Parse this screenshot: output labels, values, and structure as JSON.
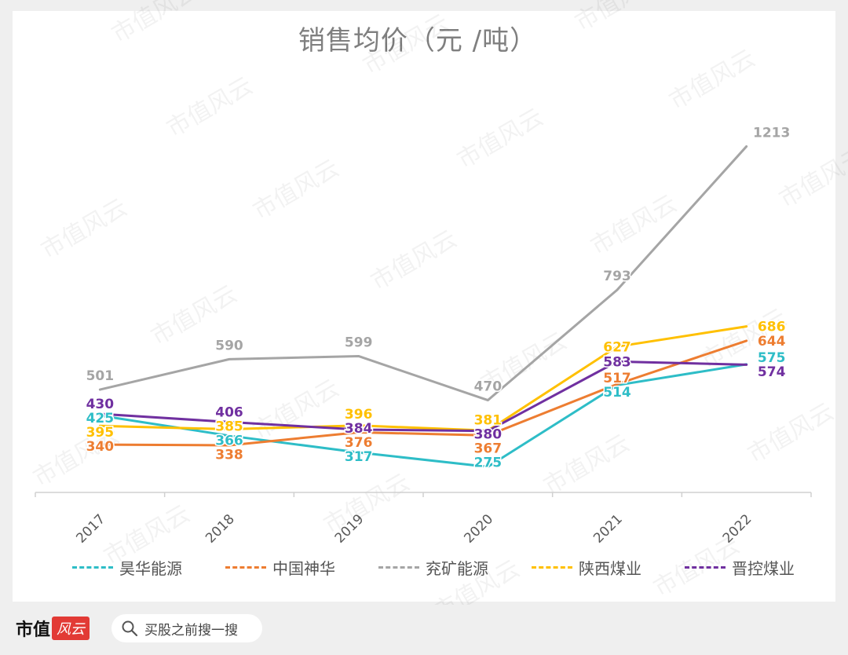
{
  "title": "销售均价（元 /吨）",
  "footer": {
    "brand_text": "市值",
    "brand_badge": "风云",
    "search_text": "买股之前搜一搜",
    "search_icon": "search-icon"
  },
  "watermark": "市值风云",
  "chart_data": {
    "type": "line",
    "title": "销售均价（元 /吨）",
    "xlabel": "",
    "ylabel": "",
    "categories": [
      "2017",
      "2018",
      "2019",
      "2020",
      "2021",
      "2022"
    ],
    "ylim": [
      200,
      1260
    ],
    "grid": false,
    "legend_position": "bottom",
    "series": [
      {
        "name": "昊华能源",
        "color": "#2ebdc7",
        "values": [
          425,
          366,
          317,
          275,
          514,
          575
        ]
      },
      {
        "name": "中国神华",
        "color": "#ed7d31",
        "values": [
          340,
          338,
          376,
          367,
          517,
          644
        ]
      },
      {
        "name": "兖矿能源",
        "color": "#a5a5a5",
        "values": [
          501,
          590,
          599,
          470,
          793,
          1213
        ]
      },
      {
        "name": "陕西煤业",
        "color": "#ffc000",
        "values": [
          395,
          385,
          396,
          381,
          627,
          686
        ]
      },
      {
        "name": "晋控煤业",
        "color": "#7030a0",
        "values": [
          430,
          406,
          384,
          380,
          583,
          574
        ]
      }
    ]
  }
}
